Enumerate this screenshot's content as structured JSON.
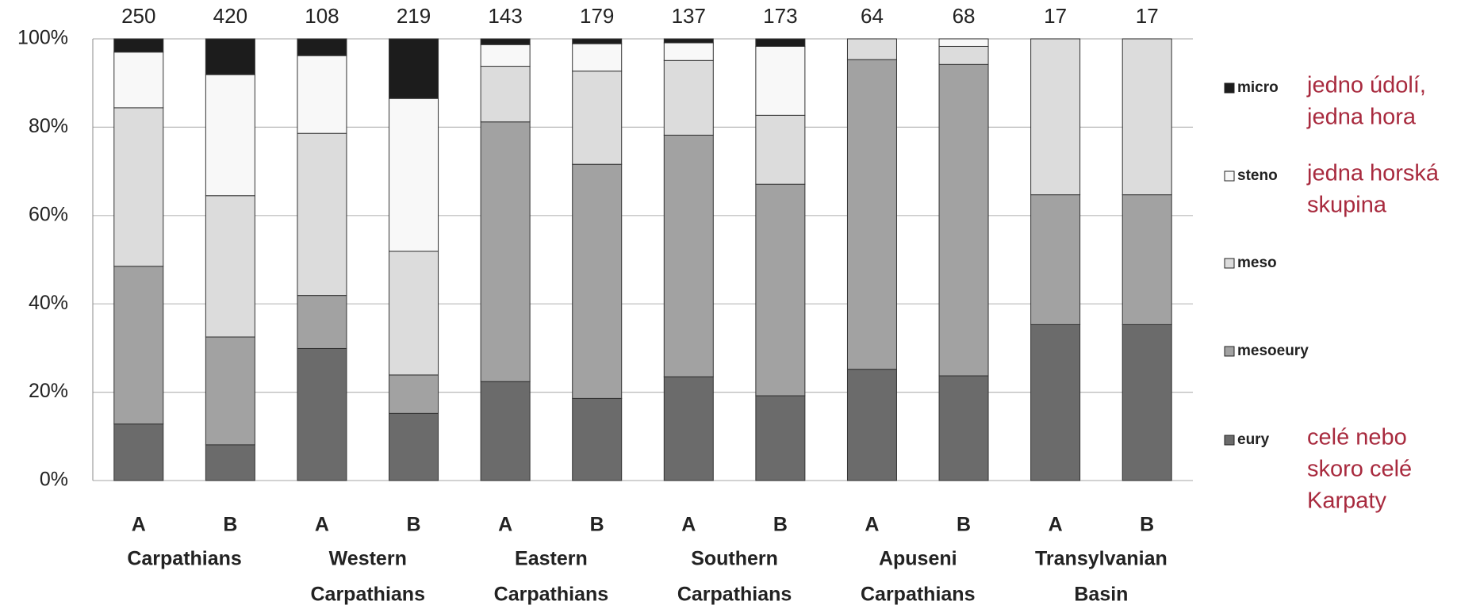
{
  "chart_data": {
    "type": "stacked-bar-100",
    "categories": [
      "A",
      "B",
      "A",
      "B",
      "A",
      "B",
      "A",
      "B",
      "A",
      "B",
      "A",
      "B"
    ],
    "groups": [
      [
        "Carpathians"
      ],
      [
        "Western",
        "Carpathians"
      ],
      [
        "Eastern",
        "Carpathians"
      ],
      [
        "Southern",
        "Carpathians"
      ],
      [
        "Apuseni",
        "Carpathians"
      ],
      [
        "Transylvanian",
        "Basin"
      ]
    ],
    "counts": [
      250,
      420,
      108,
      219,
      143,
      179,
      137,
      173,
      64,
      68,
      17,
      17
    ],
    "series": [
      {
        "name": "eury",
        "color": "#6b6b6b",
        "note": [
          "celé nebo",
          "skoro celé",
          "Karpaty"
        ],
        "values": [
          12.8,
          8.1,
          29.9,
          15.2,
          22.4,
          18.6,
          23.5,
          19.2,
          25.2,
          23.7,
          35.3,
          35.3
        ]
      },
      {
        "name": "mesoeury",
        "color": "#a2a2a2",
        "values": [
          35.7,
          24.4,
          12.0,
          8.7,
          58.8,
          53.0,
          54.7,
          47.9,
          70.1,
          70.5,
          29.4,
          29.4
        ]
      },
      {
        "name": "meso",
        "color": "#dcdcdc",
        "values": [
          35.9,
          32.0,
          36.7,
          28.0,
          12.6,
          21.1,
          16.9,
          15.6,
          4.7,
          4.1,
          35.3,
          35.3
        ]
      },
      {
        "name": "steno",
        "color": "#f8f8f8",
        "note": [
          "jedna horská",
          "skupina"
        ],
        "values": [
          12.6,
          27.4,
          17.6,
          34.6,
          4.9,
          6.2,
          4.0,
          15.6,
          0,
          1.7,
          0,
          0
        ]
      },
      {
        "name": "micro",
        "color": "#1c1c1c",
        "note": [
          "jedno údolí,",
          "jedna hora"
        ],
        "values": [
          3.0,
          8.1,
          3.8,
          13.5,
          1.3,
          1.1,
          0.9,
          1.7,
          0,
          0,
          0,
          0
        ]
      }
    ],
    "ylim": [
      0,
      100
    ],
    "yticks": [
      {
        "value": 0,
        "label": "0%"
      },
      {
        "value": 20,
        "label": "20%"
      },
      {
        "value": 40,
        "label": "40%"
      },
      {
        "value": 60,
        "label": "60%"
      },
      {
        "value": 80,
        "label": "80%"
      },
      {
        "value": 100,
        "label": "100%"
      }
    ],
    "grid": true,
    "legend": "right"
  }
}
